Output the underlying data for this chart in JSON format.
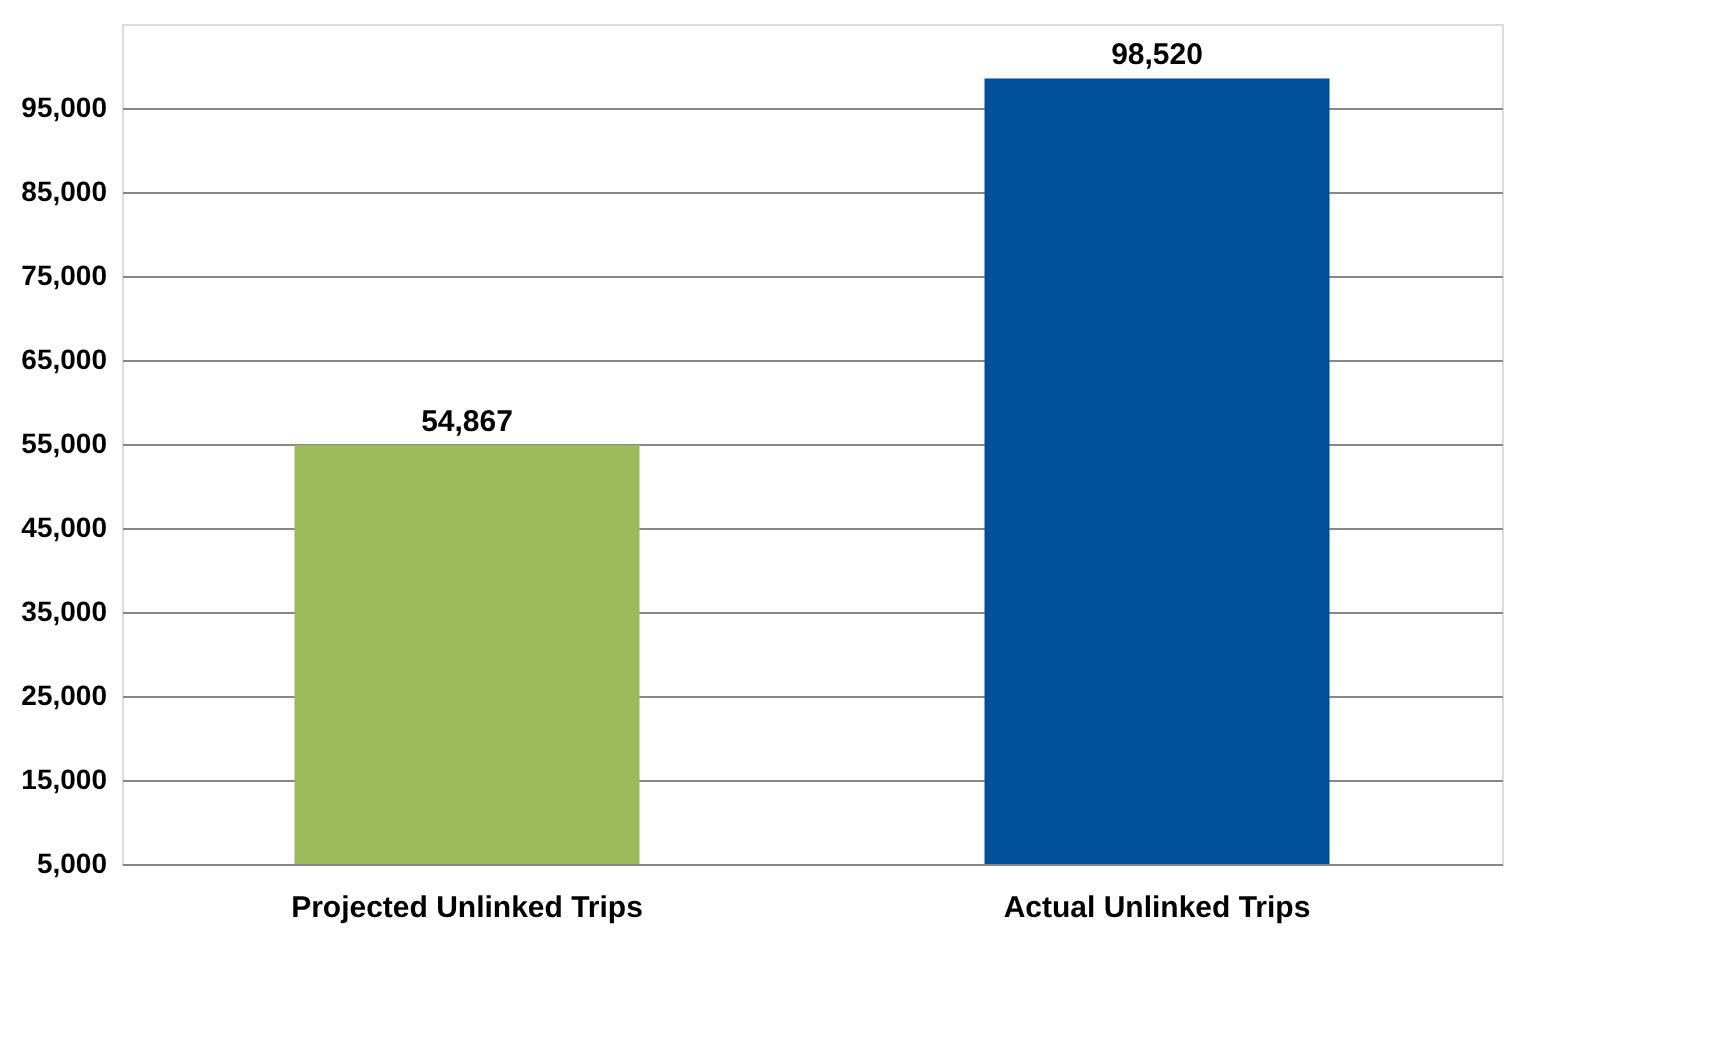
{
  "chart_data": {
    "type": "bar",
    "categories": [
      "Projected Unlinked Trips",
      "Actual Unlinked Trips"
    ],
    "values": [
      54867,
      98520
    ],
    "colors": [
      "#9bbb59",
      "#00509b"
    ],
    "ylim": [
      5000,
      105000
    ],
    "yticks": [
      {
        "value": 5000,
        "label": "5,000"
      },
      {
        "value": 15000,
        "label": "15,000"
      },
      {
        "value": 25000,
        "label": "25,000"
      },
      {
        "value": 35000,
        "label": "35,000"
      },
      {
        "value": 45000,
        "label": "45,000"
      },
      {
        "value": 55000,
        "label": "55,000"
      },
      {
        "value": 65000,
        "label": "65,000"
      },
      {
        "value": 75000,
        "label": "75,000"
      },
      {
        "value": 85000,
        "label": "85,000"
      },
      {
        "value": 95000,
        "label": "95,000"
      }
    ],
    "value_labels": [
      "54,867",
      "98,520"
    ],
    "grid": "y"
  }
}
